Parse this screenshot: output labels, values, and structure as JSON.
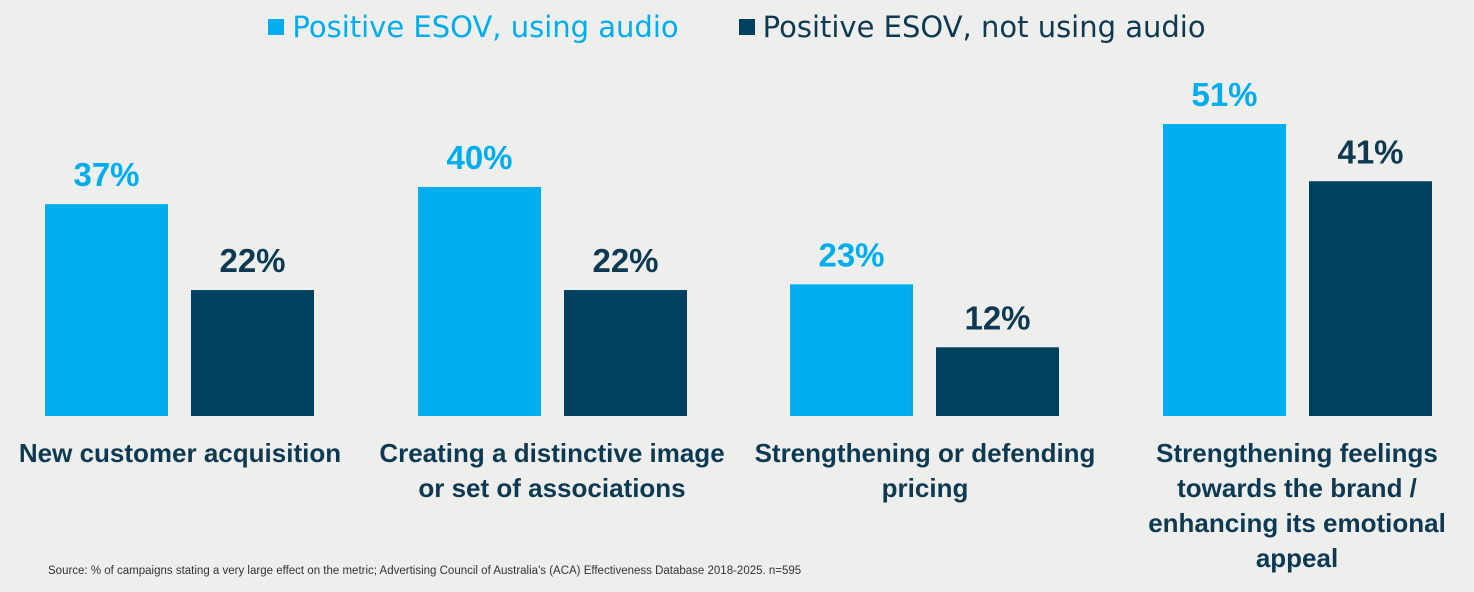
{
  "chart_data": {
    "type": "bar",
    "categories": [
      "New customer acquisition",
      "Creating a distinctive image or set of associations",
      "Strengthening or defending pricing",
      "Strengthening feelings towards the brand / enhancing its emotional appeal"
    ],
    "series": [
      {
        "name": "Positive ESOV, using audio",
        "values": [
          37,
          40,
          23,
          51
        ],
        "color": "#00aeef"
      },
      {
        "name": "Positive ESOV, not using audio",
        "values": [
          22,
          22,
          12,
          41
        ],
        "color": "#00415f"
      }
    ],
    "value_suffix": "%",
    "ylim": [
      0,
      55
    ],
    "legend_position": "top-center",
    "grid": false,
    "source": "Source: % of campaigns stating a very large effect on the metric; Advertising Council of Australia's (ACA) Effectiveness Database 2018-2025. n=595"
  }
}
